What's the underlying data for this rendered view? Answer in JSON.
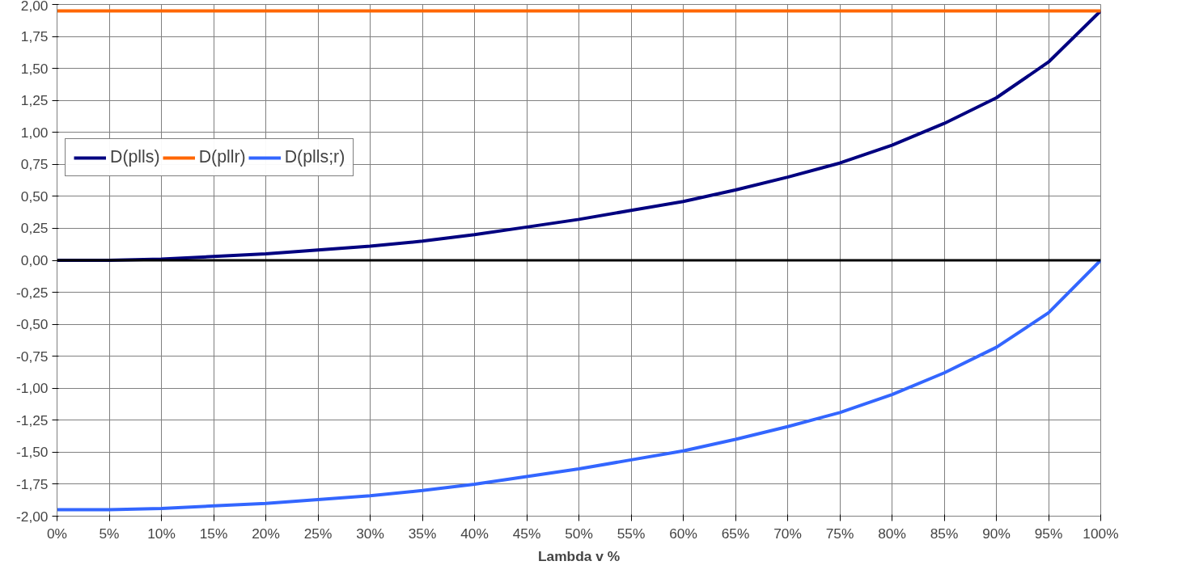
{
  "chart_data": {
    "type": "line",
    "xlabel": "Lambda v %",
    "x": [
      0,
      5,
      10,
      15,
      20,
      25,
      30,
      35,
      40,
      45,
      50,
      55,
      60,
      65,
      70,
      75,
      80,
      85,
      90,
      95,
      100
    ],
    "series": [
      {
        "name": "D(plls)",
        "color": "#000080",
        "values": [
          0,
          0,
          0.01,
          0.03,
          0.05,
          0.08,
          0.11,
          0.15,
          0.2,
          0.26,
          0.32,
          0.39,
          0.46,
          0.55,
          0.65,
          0.76,
          0.9,
          1.07,
          1.27,
          1.55,
          1.95
        ]
      },
      {
        "name": "D(pllr)",
        "color": "#ff6600",
        "values": [
          1.95,
          1.95,
          1.95,
          1.95,
          1.95,
          1.95,
          1.95,
          1.95,
          1.95,
          1.95,
          1.95,
          1.95,
          1.95,
          1.95,
          1.95,
          1.95,
          1.95,
          1.95,
          1.95,
          1.95,
          1.95
        ]
      },
      {
        "name": "D(plls;r)",
        "color": "#3366ff",
        "values": [
          -1.95,
          -1.95,
          -1.94,
          -1.92,
          -1.9,
          -1.87,
          -1.84,
          -1.8,
          -1.75,
          -1.69,
          -1.63,
          -1.56,
          -1.49,
          -1.4,
          -1.3,
          -1.19,
          -1.05,
          -0.88,
          -0.68,
          -0.41,
          0
        ]
      }
    ],
    "xlim": [
      0,
      100
    ],
    "xticks": [
      {
        "value": 0,
        "label": "0%"
      },
      {
        "value": 5,
        "label": "5%"
      },
      {
        "value": 10,
        "label": "10%"
      },
      {
        "value": 15,
        "label": "15%"
      },
      {
        "value": 20,
        "label": "20%"
      },
      {
        "value": 25,
        "label": "25%"
      },
      {
        "value": 30,
        "label": "30%"
      },
      {
        "value": 35,
        "label": "35%"
      },
      {
        "value": 40,
        "label": "40%"
      },
      {
        "value": 45,
        "label": "45%"
      },
      {
        "value": 50,
        "label": "50%"
      },
      {
        "value": 55,
        "label": "55%"
      },
      {
        "value": 60,
        "label": "60%"
      },
      {
        "value": 65,
        "label": "65%"
      },
      {
        "value": 70,
        "label": "70%"
      },
      {
        "value": 75,
        "label": "75%"
      },
      {
        "value": 80,
        "label": "80%"
      },
      {
        "value": 85,
        "label": "85%"
      },
      {
        "value": 90,
        "label": "90%"
      },
      {
        "value": 95,
        "label": "95%"
      },
      {
        "value": 100,
        "label": "100%"
      }
    ],
    "ylim": [
      -2,
      2
    ],
    "yticks": [
      {
        "value": -2,
        "label": "-2,00"
      },
      {
        "value": -1.75,
        "label": "-1,75"
      },
      {
        "value": -1.5,
        "label": "-1,50"
      },
      {
        "value": -1.25,
        "label": "-1,25"
      },
      {
        "value": -1,
        "label": "-1,00"
      },
      {
        "value": -0.75,
        "label": "-0,75"
      },
      {
        "value": -0.5,
        "label": "-0,50"
      },
      {
        "value": -0.25,
        "label": "-0,25"
      },
      {
        "value": 0,
        "label": "0,00"
      },
      {
        "value": 0.25,
        "label": "0,25"
      },
      {
        "value": 0.5,
        "label": "0,50"
      },
      {
        "value": 0.75,
        "label": "0,75"
      },
      {
        "value": 1,
        "label": "1,00"
      },
      {
        "value": 1.25,
        "label": "1,25"
      },
      {
        "value": 1.5,
        "label": "1,50"
      },
      {
        "value": 1.75,
        "label": "1,75"
      },
      {
        "value": 2,
        "label": "2,00"
      }
    ],
    "ref_lines": [
      {
        "axis": "y",
        "value": 0,
        "color": "#000000"
      }
    ],
    "grid": true,
    "legend": "left",
    "marker": "none",
    "line_style": "solid"
  }
}
